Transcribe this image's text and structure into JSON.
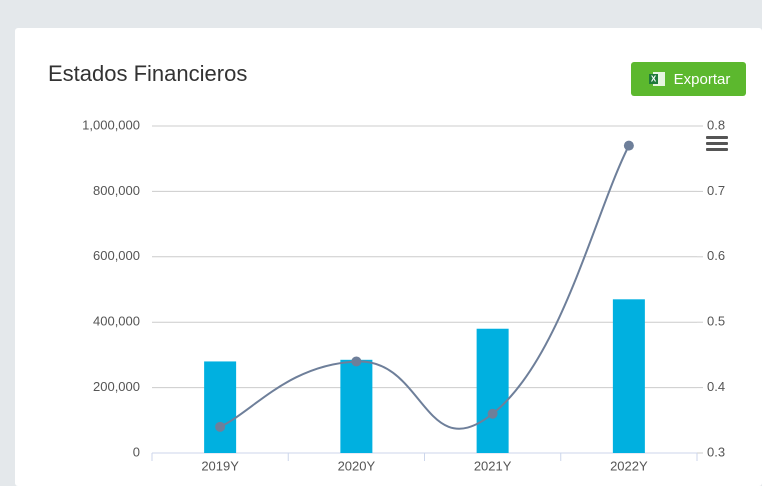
{
  "export_button": "Exportar",
  "chart_data": {
    "type": "bar-line",
    "title": "Estados Financieros",
    "categories": [
      "2019Y",
      "2020Y",
      "2021Y",
      "2022Y"
    ],
    "series": [
      {
        "type": "bar",
        "color": "#00b0e0",
        "values": [
          280000,
          285000,
          380000,
          470000
        ]
      },
      {
        "type": "line",
        "axis": "y2",
        "color": "#6e7f9a",
        "values": [
          0.34,
          0.44,
          0.36,
          0.77
        ]
      }
    ],
    "ylim": [
      0,
      1000000
    ],
    "yticks": [
      0,
      {
        "value": 200000,
        "label": "200,000"
      },
      {
        "value": 400000,
        "label": "400,000"
      },
      {
        "value": 600000,
        "label": "600,000"
      },
      {
        "value": 800000,
        "label": "800,000"
      },
      {
        "value": 1000000,
        "label": "1,000,000"
      }
    ],
    "y2lim": [
      0.3,
      0.8
    ],
    "y2ticks": [
      0.3,
      0.4,
      0.5,
      0.6,
      0.7,
      0.8
    ],
    "grid": true
  }
}
